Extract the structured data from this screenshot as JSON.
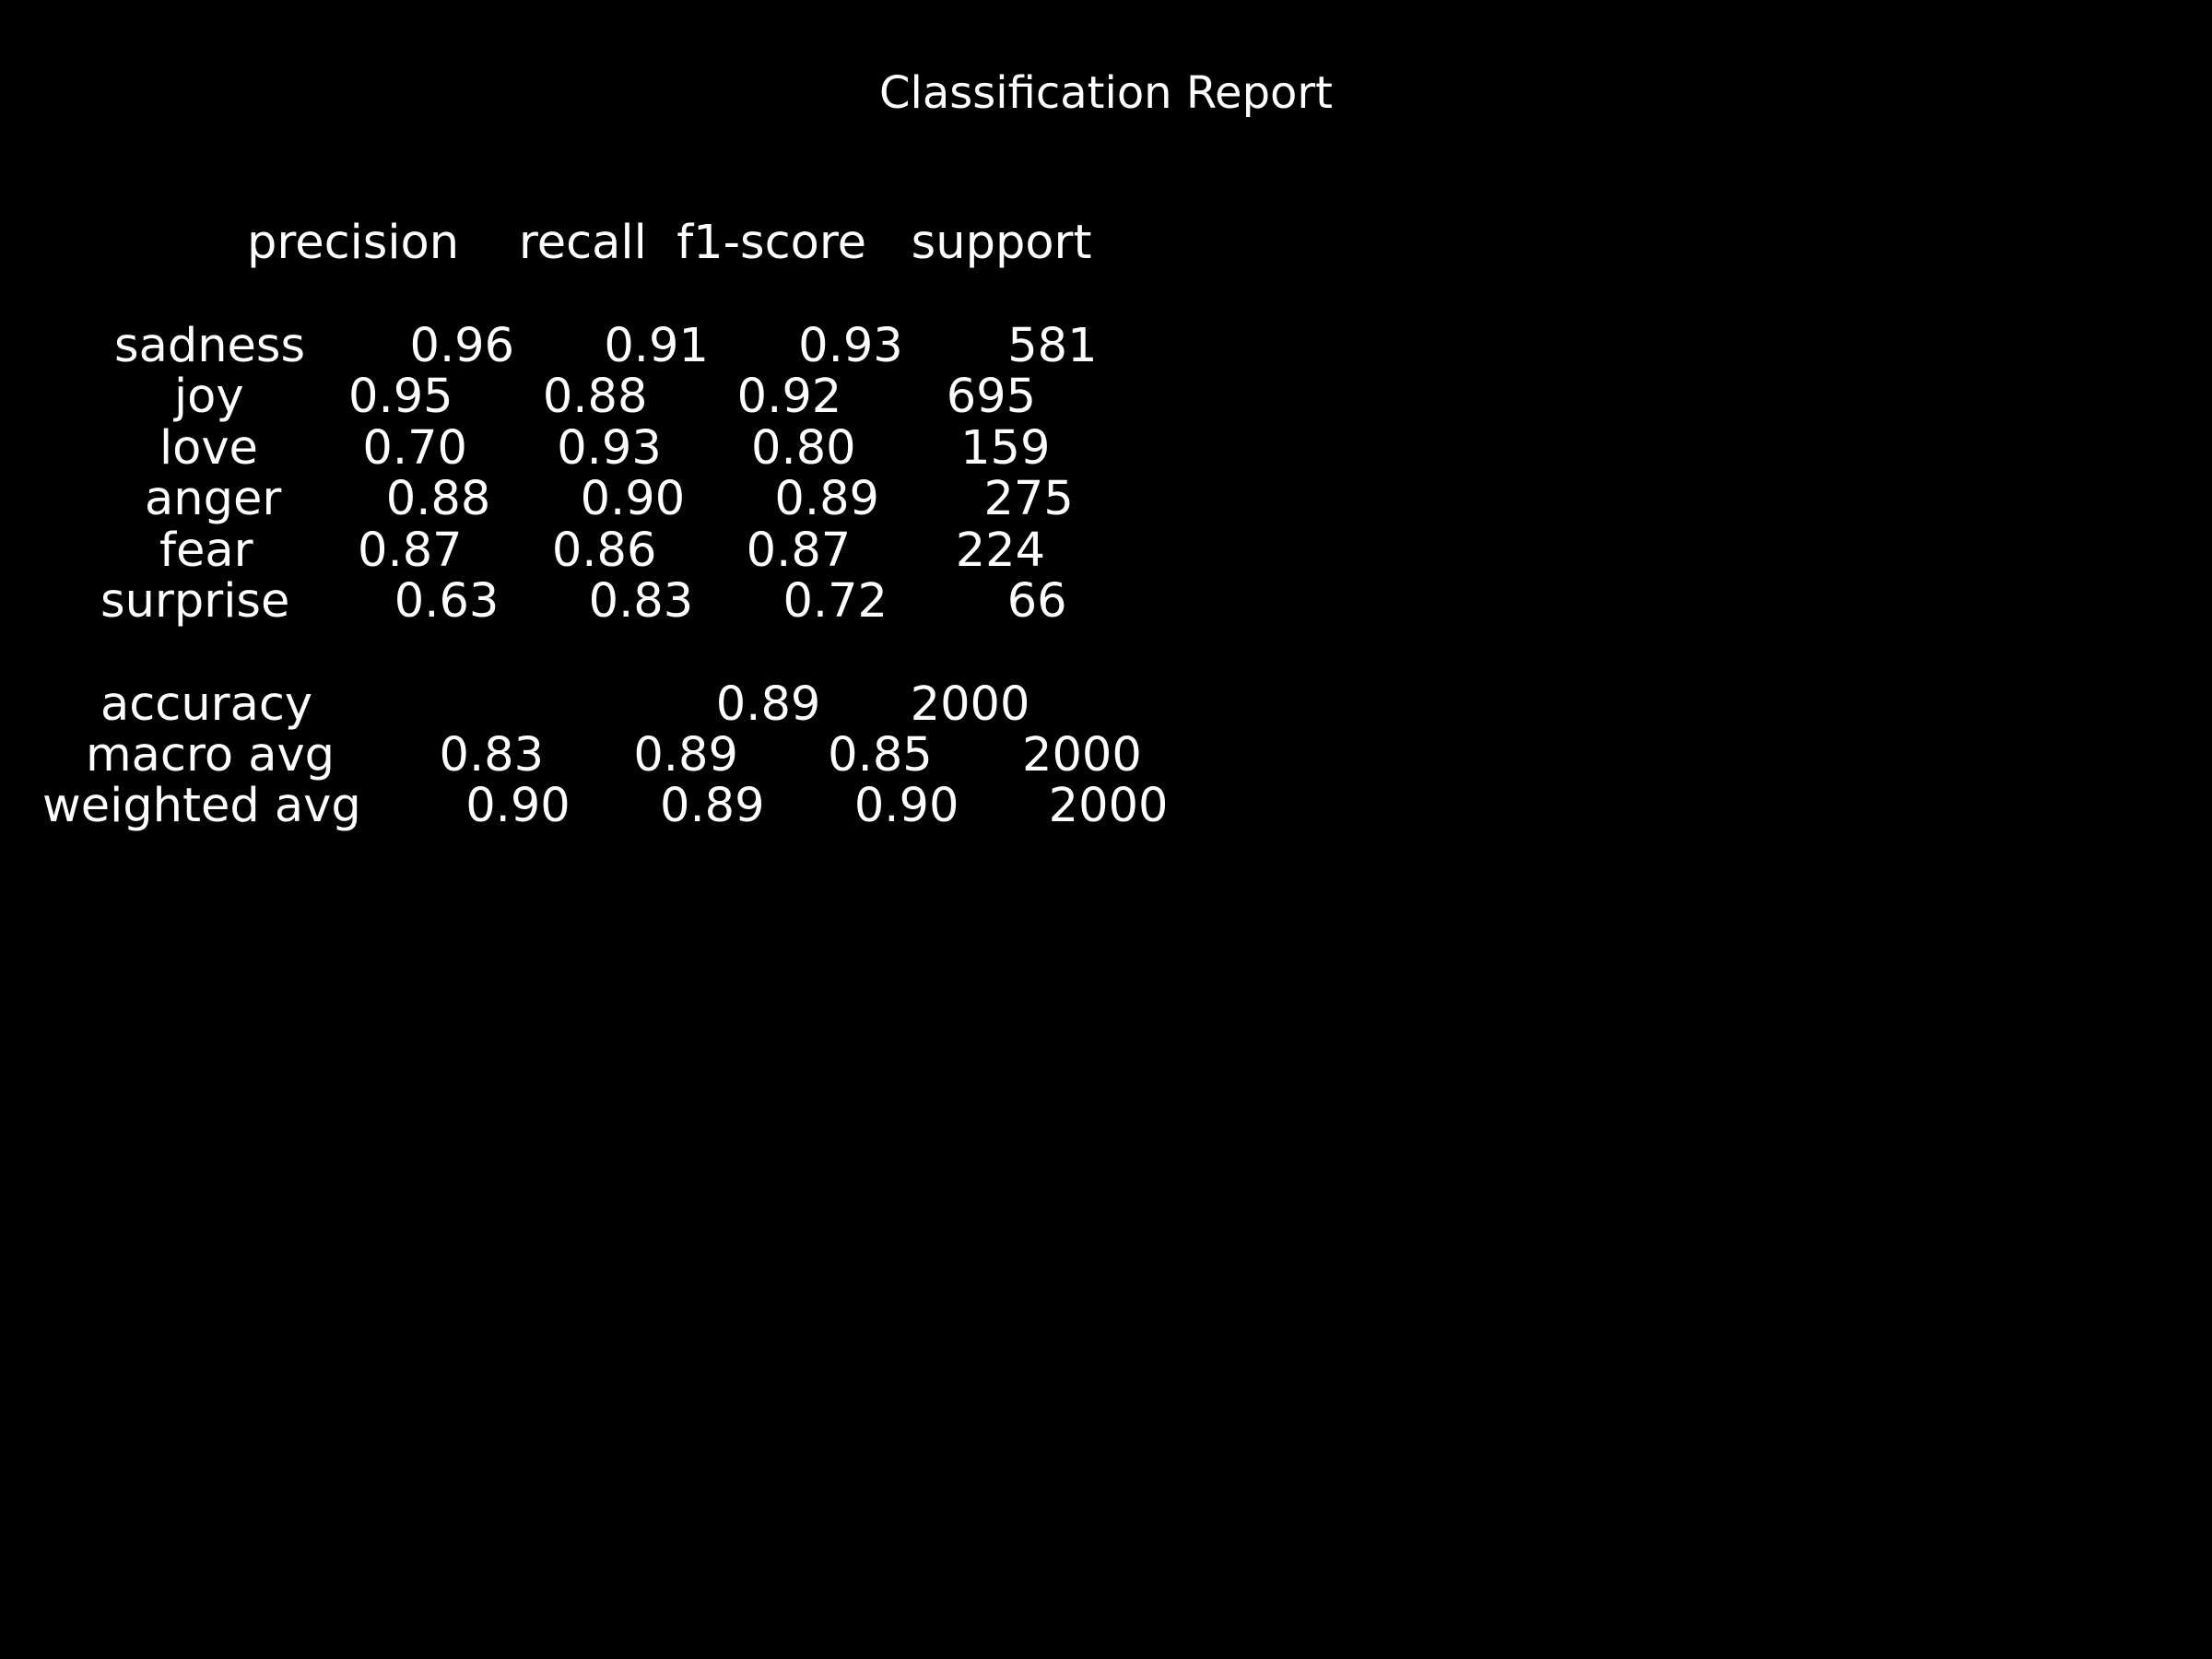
{
  "title": "Classification Report",
  "report": {
    "header": "precision    recall  f1-score   support",
    "columns": [
      "precision",
      "recall",
      "f1-score",
      "support"
    ],
    "rows": [
      {
        "label": "sadness",
        "line": "sadness       0.96      0.91      0.93       581",
        "precision": "0.96",
        "recall": "0.91",
        "f1_score": "0.93",
        "support": "581"
      },
      {
        "label": "joy",
        "line": "joy       0.95      0.88      0.92       695",
        "precision": "0.95",
        "recall": "0.88",
        "f1_score": "0.92",
        "support": "695"
      },
      {
        "label": "love",
        "line": "love       0.70      0.93      0.80       159",
        "precision": "0.70",
        "recall": "0.93",
        "f1_score": "0.80",
        "support": "159"
      },
      {
        "label": "anger",
        "line": "anger       0.88      0.90      0.89       275",
        "precision": "0.88",
        "recall": "0.90",
        "f1_score": "0.89",
        "support": "275"
      },
      {
        "label": "fear",
        "line": "fear       0.87      0.86      0.87       224",
        "precision": "0.87",
        "recall": "0.86",
        "f1_score": "0.87",
        "support": "224"
      },
      {
        "label": "surprise",
        "line": "surprise       0.63      0.83      0.72        66",
        "precision": "0.63",
        "recall": "0.83",
        "f1_score": "0.72",
        "support": "66"
      }
    ],
    "summary": [
      {
        "label": "accuracy",
        "line": "accuracy                           0.89      2000",
        "f1_score": "0.89",
        "support": "2000"
      },
      {
        "label": "macro avg",
        "line": "macro avg       0.83      0.89      0.85      2000",
        "precision": "0.83",
        "recall": "0.89",
        "f1_score": "0.85",
        "support": "2000"
      },
      {
        "label": "weighted avg",
        "line": "weighted avg       0.90      0.89      0.90      2000",
        "precision": "0.90",
        "recall": "0.89",
        "f1_score": "0.90",
        "support": "2000"
      }
    ]
  }
}
